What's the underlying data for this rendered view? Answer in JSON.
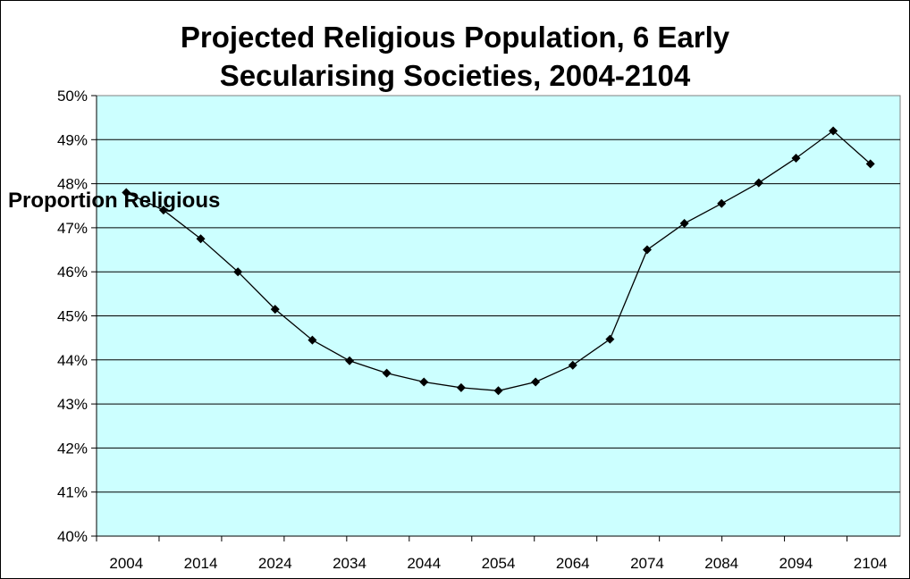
{
  "chart_data": {
    "type": "line",
    "title_line1": "Projected Religious Population, 6 Early",
    "title_line2": "Secularising Societies, 2004-2104",
    "ylabel": "Proportion Religious",
    "xlabel": "",
    "ylim": [
      40,
      50
    ],
    "y_ticks": [
      "40%",
      "41%",
      "42%",
      "43%",
      "44%",
      "45%",
      "46%",
      "47%",
      "48%",
      "49%",
      "50%"
    ],
    "x_ticks": [
      "2004",
      "2014",
      "2024",
      "2034",
      "2044",
      "2054",
      "2064",
      "2074",
      "2084",
      "2094",
      "2104"
    ],
    "grid": true,
    "plot_background": "#CCFFFF",
    "line_color": "#000000",
    "series": [
      {
        "x": [
          2004,
          2009,
          2014,
          2019,
          2024,
          2029,
          2034,
          2039,
          2044,
          2049,
          2054,
          2059,
          2064,
          2069,
          2074,
          2079,
          2084,
          2089,
          2094,
          2099,
          2104
        ],
        "values": [
          47.8,
          47.4,
          46.75,
          46.0,
          45.15,
          44.45,
          43.98,
          43.7,
          43.5,
          43.37,
          43.3,
          43.5,
          43.88,
          44.47,
          46.5,
          47.1,
          47.55,
          48.02,
          48.58,
          49.2,
          48.45
        ]
      }
    ]
  }
}
